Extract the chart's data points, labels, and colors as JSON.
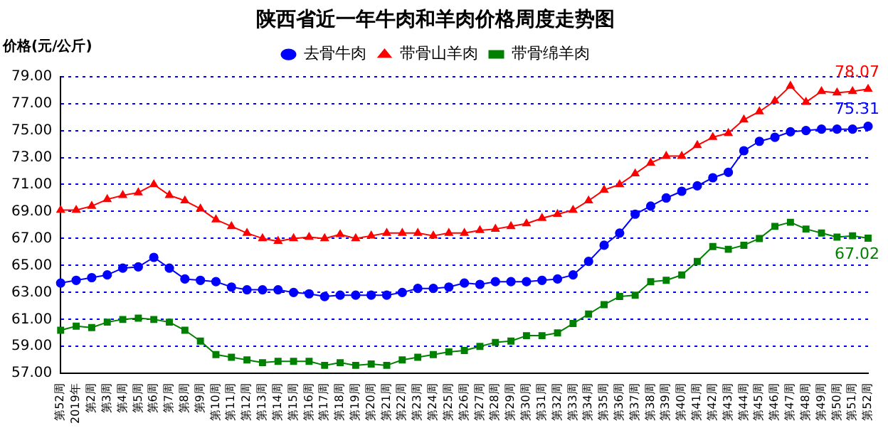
{
  "chart_data": {
    "type": "line",
    "title": "陕西省近一年牛肉和羊肉价格周度走势图",
    "ylabel": "价格(元/公斤)",
    "categories": [
      "第52周",
      "2019年",
      "第2周",
      "第3周",
      "第4周",
      "第5周",
      "第6周",
      "第7周",
      "第8周",
      "第9周",
      "第10周",
      "第11周",
      "第12周",
      "第13周",
      "第14周",
      "第15周",
      "第16周",
      "第17周",
      "第18周",
      "第19周",
      "第20周",
      "第21周",
      "第22周",
      "第23周",
      "第24周",
      "第25周",
      "第26周",
      "第27周",
      "第28周",
      "第29周",
      "第30周",
      "第31周",
      "第32周",
      "第33周",
      "第34周",
      "第35周",
      "第36周",
      "第37周",
      "第38周",
      "第39周",
      "第40周",
      "第41周",
      "第42周",
      "第43周",
      "第44周",
      "第45周",
      "第46周",
      "第47周",
      "第48周",
      "第49周",
      "第50周",
      "第51周",
      "第52周"
    ],
    "series": [
      {
        "name": "去骨牛肉",
        "color": "#0000ff",
        "marker": "circle",
        "values": [
          63.7,
          63.9,
          64.1,
          64.3,
          64.8,
          64.9,
          65.6,
          64.8,
          64.0,
          63.9,
          63.8,
          63.4,
          63.2,
          63.2,
          63.2,
          63.0,
          62.9,
          62.7,
          62.8,
          62.8,
          62.8,
          62.8,
          63.0,
          63.3,
          63.3,
          63.4,
          63.7,
          63.6,
          63.8,
          63.8,
          63.8,
          63.9,
          64.0,
          64.3,
          65.3,
          66.5,
          67.4,
          68.8,
          69.4,
          70.0,
          70.5,
          70.9,
          71.5,
          71.9,
          73.5,
          74.2,
          74.5,
          74.9,
          75.0,
          75.1,
          75.1,
          75.1,
          75.31
        ],
        "value_labels": [
          null,
          null,
          null,
          null,
          null,
          null,
          null,
          null,
          null,
          null,
          null,
          null,
          null,
          null,
          null,
          null,
          null,
          null,
          null,
          null,
          null,
          null,
          null,
          null,
          null,
          null,
          null,
          null,
          null,
          null,
          null,
          null,
          null,
          null,
          null,
          null,
          null,
          null,
          null,
          null,
          null,
          null,
          null,
          null,
          null,
          null,
          null,
          null,
          null,
          null,
          null,
          null,
          "75.31"
        ]
      },
      {
        "name": "带骨山羊肉",
        "color": "#ff0000",
        "marker": "triangle",
        "values": [
          69.1,
          69.1,
          69.4,
          69.9,
          70.2,
          70.4,
          71.0,
          70.2,
          69.8,
          69.2,
          68.4,
          67.9,
          67.4,
          67.0,
          66.8,
          67.0,
          67.1,
          67.0,
          67.3,
          67.0,
          67.2,
          67.4,
          67.4,
          67.4,
          67.2,
          67.4,
          67.4,
          67.6,
          67.7,
          67.9,
          68.1,
          68.5,
          68.8,
          69.1,
          69.8,
          70.6,
          71.0,
          71.8,
          72.6,
          73.1,
          73.1,
          73.9,
          74.5,
          74.8,
          75.8,
          76.4,
          77.2,
          78.3,
          77.1,
          77.9,
          77.8,
          77.9,
          78.07
        ],
        "value_labels": [
          null,
          null,
          null,
          null,
          null,
          null,
          null,
          null,
          null,
          null,
          null,
          null,
          null,
          null,
          null,
          null,
          null,
          null,
          null,
          null,
          null,
          null,
          null,
          null,
          null,
          null,
          null,
          null,
          null,
          null,
          null,
          null,
          null,
          null,
          null,
          null,
          null,
          null,
          null,
          null,
          null,
          null,
          null,
          null,
          null,
          null,
          null,
          null,
          null,
          null,
          null,
          null,
          "78.07"
        ]
      },
      {
        "name": "带骨绵羊肉",
        "color": "#008000",
        "marker": "square",
        "values": [
          60.2,
          60.5,
          60.4,
          60.8,
          61.0,
          61.1,
          61.0,
          60.8,
          60.2,
          59.4,
          58.4,
          58.2,
          58.0,
          57.8,
          57.9,
          57.9,
          57.9,
          57.6,
          57.8,
          57.6,
          57.7,
          57.6,
          58.0,
          58.2,
          58.4,
          58.6,
          58.7,
          59.0,
          59.3,
          59.4,
          59.8,
          59.8,
          60.0,
          60.7,
          61.4,
          62.1,
          62.7,
          62.8,
          63.8,
          63.9,
          64.3,
          65.3,
          66.4,
          66.2,
          66.5,
          67.0,
          67.9,
          68.2,
          67.7,
          67.4,
          67.1,
          67.2,
          67.02
        ],
        "value_labels": [
          null,
          null,
          null,
          null,
          null,
          null,
          null,
          null,
          null,
          null,
          null,
          null,
          null,
          null,
          null,
          null,
          null,
          null,
          null,
          null,
          null,
          null,
          null,
          null,
          null,
          null,
          null,
          null,
          null,
          null,
          null,
          null,
          null,
          null,
          null,
          null,
          null,
          null,
          null,
          null,
          null,
          null,
          null,
          null,
          null,
          null,
          null,
          null,
          null,
          null,
          null,
          null,
          "67.02"
        ]
      }
    ],
    "ylim": [
      57,
      79
    ],
    "yticks": [
      {
        "value": 57,
        "label": "57.00"
      },
      {
        "value": 59,
        "label": "59.00"
      },
      {
        "value": 61,
        "label": "61.00"
      },
      {
        "value": 63,
        "label": "63.00"
      },
      {
        "value": 65,
        "label": "65.00"
      },
      {
        "value": 67,
        "label": "67.00"
      },
      {
        "value": 69,
        "label": "69.00"
      },
      {
        "value": 71,
        "label": "71.00"
      },
      {
        "value": 73,
        "label": "73.00"
      },
      {
        "value": 75,
        "label": "75.00"
      },
      {
        "value": 77,
        "label": "77.00"
      },
      {
        "value": 79,
        "label": "79.00"
      }
    ],
    "grid": "y",
    "legend": "top",
    "line_style": "solid"
  }
}
